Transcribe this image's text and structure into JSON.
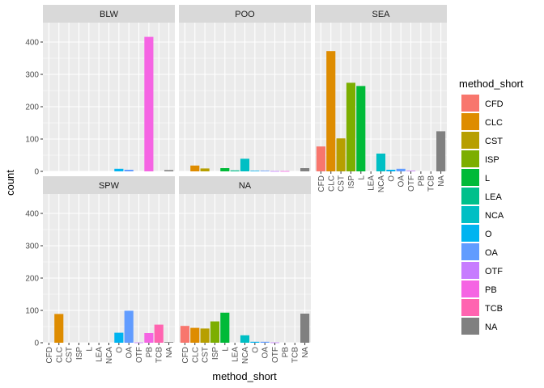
{
  "chart_data": {
    "type": "bar",
    "facet_layout": "wrap",
    "xlabel": "method_short",
    "ylabel": "count",
    "ylim": [
      0,
      460
    ],
    "yticks": [
      0,
      100,
      200,
      300,
      400
    ],
    "grid": true,
    "legend_position": "right",
    "legend_title": "method_short",
    "categories": [
      "CFD",
      "CLC",
      "CST",
      "ISP",
      "L",
      "LEA",
      "NCA",
      "O",
      "OA",
      "OTF",
      "PB",
      "TCB",
      "NA"
    ],
    "colors": {
      "CFD": "#F8766D",
      "CLC": "#DE8C00",
      "CST": "#B79F00",
      "ISP": "#7CAE00",
      "L": "#00BA38",
      "LEA": "#00C08B",
      "NCA": "#00BFC4",
      "O": "#00B4F0",
      "OA": "#619CFF",
      "OTF": "#C77CFF",
      "PB": "#F564E3",
      "TCB": "#FF64B0",
      "NA": "#808080"
    },
    "facets": [
      {
        "label": "BLW",
        "values": {
          "O": 8,
          "OA": 5,
          "PB": 416,
          "NA": 4
        }
      },
      {
        "label": "POO",
        "values": {
          "CLC": 18,
          "CST": 9,
          "L": 10,
          "LEA": 3,
          "NCA": 39,
          "O": 2,
          "OA": 2,
          "OTF": 1,
          "PB": 1,
          "NA": 10
        }
      },
      {
        "label": "SEA",
        "values": {
          "CFD": 77,
          "CLC": 372,
          "CST": 102,
          "ISP": 274,
          "L": 264,
          "NCA": 55,
          "O": 5,
          "OA": 8,
          "OTF": 2,
          "NA": 124
        }
      },
      {
        "label": "SPW",
        "values": {
          "CLC": 89,
          "O": 31,
          "OA": 99,
          "OTF": 1,
          "PB": 30,
          "TCB": 56,
          "NA": 2
        }
      },
      {
        "label": "NA",
        "values": {
          "CFD": 52,
          "CLC": 46,
          "CST": 44,
          "ISP": 66,
          "L": 93,
          "NCA": 23,
          "O": 3,
          "OA": 3,
          "OTF": 1,
          "NA": 90
        }
      }
    ]
  }
}
